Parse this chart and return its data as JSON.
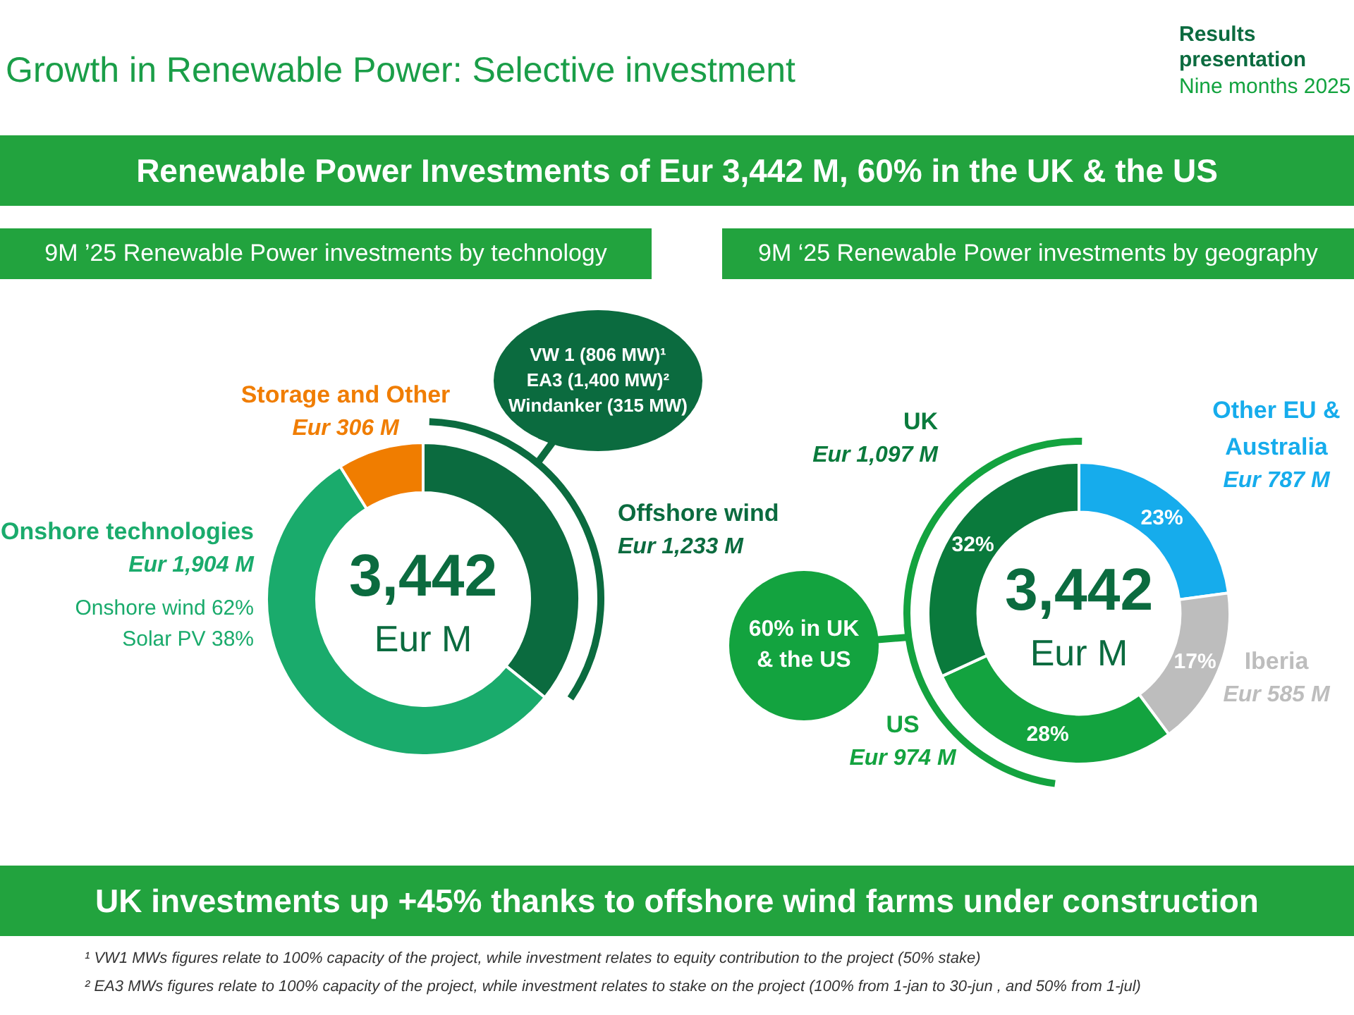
{
  "chart_data": [
    {
      "type": "other",
      "title": "Growth in Renewable Power: Selective investment",
      "subtitle": "Renewable Power Investments of Eur 3,442 M, 60% in the UK & the US",
      "annotations": [
        "Results presentation",
        "Nine months 2025",
        "UK investments up +45% thanks to offshore wind farms under construction",
        "¹ VW1 MWs figures relate to 100% capacity of the project, while investment relates to equity contribution to the project (50% stake)",
        "² EA3 MWs figures relate to 100% capacity of the project, while investment relates to stake on the project (100% from 1-jan to 30-jun , and 50% from 1-jul)"
      ]
    },
    {
      "type": "donut",
      "title": "9M ’25 Renewable Power investments by technology",
      "categories": [
        "Offshore wind",
        "Onshore technologies",
        "Storage and Other"
      ],
      "values": [
        1233,
        1904,
        306
      ],
      "colors": [
        "#0b6b3f",
        "#1aab6c",
        "#f07d00"
      ],
      "value_labels": [
        "Eur 1,233 M",
        "Eur 1,904 M",
        "Eur 306 M"
      ],
      "annotations": [
        "3,442",
        "Eur M",
        "Onshore wind 62%",
        "Solar PV 38%",
        "VW 1 (806 MW)¹",
        "EA3 (1,400 MW)²",
        "Windanker (315 MW)"
      ]
    },
    {
      "type": "donut",
      "title": "9M ‘25 Renewable Power investments by geography",
      "categories": [
        "Other EU & Australia",
        "Iberia",
        "US",
        "UK"
      ],
      "values": [
        787,
        585,
        974,
        1097
      ],
      "colors": [
        "#16acec",
        "#bdbdbd",
        "#13a33f",
        "#0a7a3c"
      ],
      "value_labels": [
        "Eur 787 M",
        "Eur 585 M",
        "Eur 974 M",
        "Eur 1,097 M"
      ],
      "annotations": [
        "3,442",
        "Eur M",
        "23%",
        "17%",
        "28%",
        "32%",
        "60% in UK & the US"
      ]
    }
  ]
}
